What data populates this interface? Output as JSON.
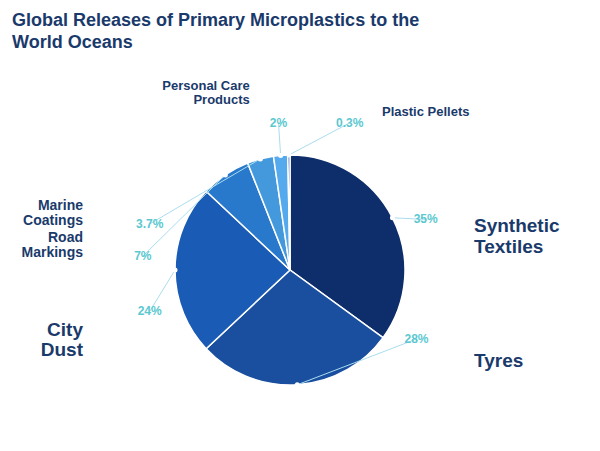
{
  "chart_data": {
    "type": "pie",
    "title": "Global Releases of Primary Microplastics to the\nWorld Oceans",
    "categories": [
      "Synthetic\nTextiles",
      "Tyres",
      "City\nDust",
      "Road\nMarkings",
      "Marine\nCoatings",
      "Personal Care\nProducts",
      "Plastic Pellets"
    ],
    "values": [
      35,
      28,
      24,
      7,
      3.7,
      2,
      0.3
    ],
    "value_labels": [
      "35%",
      "28%",
      "24%",
      "7%",
      "3.7%",
      "2%",
      "0.3%"
    ],
    "colors": [
      "#0d2d6b",
      "#1a4fa0",
      "#1a5cb5",
      "#2878cc",
      "#4499dd",
      "#55aaee",
      "#1f3a8a"
    ],
    "data_labels": true
  }
}
